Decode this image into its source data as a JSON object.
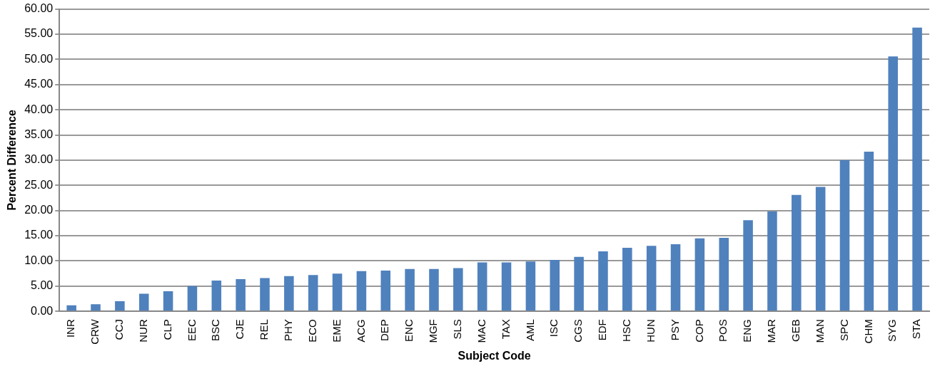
{
  "chart_data": {
    "type": "bar",
    "xlabel": "Subject Code",
    "ylabel": "Percent Difference",
    "categories": [
      "INR",
      "CRW",
      "CCJ",
      "NUR",
      "CLP",
      "EEC",
      "BSC",
      "CJE",
      "REL",
      "PHY",
      "ECO",
      "EME",
      "ACG",
      "DEP",
      "ENC",
      "MGF",
      "SLS",
      "MAC",
      "TAX",
      "AML",
      "ISC",
      "CGS",
      "EDF",
      "HSC",
      "HUN",
      "PSY",
      "COP",
      "POS",
      "ENG",
      "MAR",
      "GEB",
      "MAN",
      "SPC",
      "CHM",
      "SYG",
      "STA"
    ],
    "values": [
      1.2,
      1.4,
      2.0,
      3.5,
      4.0,
      5.0,
      6.1,
      6.4,
      6.6,
      7.0,
      7.2,
      7.5,
      8.0,
      8.1,
      8.4,
      8.4,
      8.6,
      9.7,
      9.7,
      9.9,
      10.2,
      10.8,
      11.9,
      12.6,
      13.0,
      13.3,
      14.5,
      14.6,
      18.1,
      19.8,
      23.1,
      24.7,
      30.0,
      31.7,
      50.6,
      56.3
    ],
    "color": "#4f81bd",
    "ylim": [
      0,
      60
    ],
    "yticks": [
      {
        "value": 0,
        "label": "0.00"
      },
      {
        "value": 5,
        "label": "5.00"
      },
      {
        "value": 10,
        "label": "10.00"
      },
      {
        "value": 15,
        "label": "15.00"
      },
      {
        "value": 20,
        "label": "20.00"
      },
      {
        "value": 25,
        "label": "25.00"
      },
      {
        "value": 30,
        "label": "30.00"
      },
      {
        "value": 35,
        "label": "35.00"
      },
      {
        "value": 40,
        "label": "40.00"
      },
      {
        "value": 45,
        "label": "45.00"
      },
      {
        "value": 50,
        "label": "50.00"
      },
      {
        "value": 55,
        "label": "55.00"
      },
      {
        "value": 60,
        "label": "60.00"
      }
    ],
    "grid": "y",
    "legend": false
  }
}
